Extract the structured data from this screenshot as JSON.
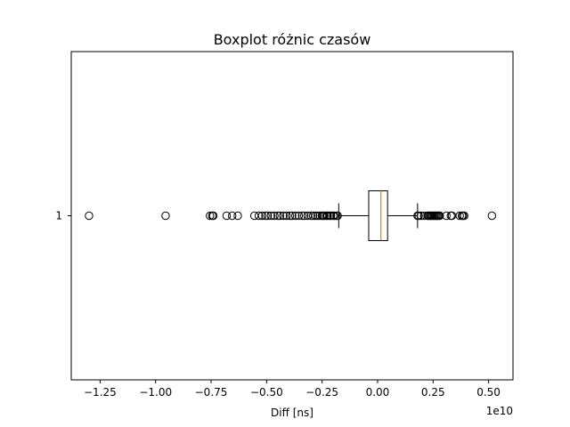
{
  "chart_data": {
    "type": "boxplot",
    "orientation": "horizontal",
    "title": "Boxplot różnic czasów",
    "xlabel": "Diff [ns]",
    "ylabel": "",
    "x_offset_label": "1e10",
    "x_scale": 10000000000,
    "xlim": [
      -1.38,
      0.61
    ],
    "x_ticks": [
      -1.25,
      -1.0,
      -0.75,
      -0.5,
      -0.25,
      0.0,
      0.25,
      0.5
    ],
    "x_tick_labels": [
      "−1.25",
      "−1.00",
      "−0.75",
      "−0.50",
      "−0.25",
      "0.00",
      "0.25",
      "0.50"
    ],
    "y_ticks": [
      1
    ],
    "y_tick_labels": [
      "1"
    ],
    "grid": false,
    "colors": {
      "box": "#000000",
      "median": "#e07b10",
      "flier": "#000000"
    },
    "boxes": [
      {
        "position": 1,
        "whisker_low": -0.175,
        "q1": -0.04,
        "median": 0.015,
        "q3": 0.045,
        "whisker_high": 0.18,
        "fliers": [
          -1.3,
          -0.955,
          -0.755,
          -0.745,
          -0.74,
          -0.68,
          -0.655,
          -0.63,
          -0.555,
          -0.535,
          -0.52,
          -0.505,
          -0.495,
          -0.48,
          -0.465,
          -0.45,
          -0.44,
          -0.425,
          -0.41,
          -0.395,
          -0.385,
          -0.37,
          -0.355,
          -0.34,
          -0.33,
          -0.315,
          -0.3,
          -0.29,
          -0.28,
          -0.27,
          -0.26,
          -0.25,
          -0.245,
          -0.24,
          -0.23,
          -0.225,
          -0.215,
          -0.21,
          -0.2,
          -0.195,
          -0.185,
          -0.18,
          0.18,
          0.185,
          0.195,
          0.21,
          0.225,
          0.23,
          0.235,
          0.24,
          0.245,
          0.25,
          0.255,
          0.26,
          0.265,
          0.27,
          0.275,
          0.28,
          0.31,
          0.33,
          0.335,
          0.37,
          0.38,
          0.385,
          0.39,
          0.515
        ]
      }
    ]
  }
}
